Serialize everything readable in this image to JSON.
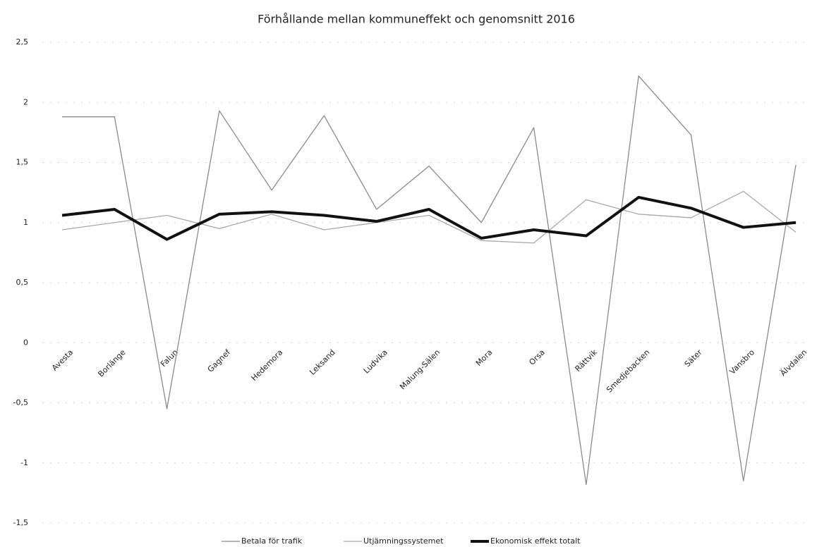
{
  "chart_data": {
    "type": "line",
    "title": "Förhållande mellan kommuneffekt och genomsnitt 2016",
    "categories": [
      "Avesta",
      "Borlänge",
      "Falun",
      "Gagnef",
      "Hedemora",
      "Leksand",
      "Ludvika",
      "Malung-Sälen",
      "Mora",
      "Orsa",
      "Rättvik",
      "Smedjebacken",
      "Säter",
      "Vansbro",
      "Älvdalen"
    ],
    "series": [
      {
        "name": "Betala för trafik",
        "color": "#8a8a8a",
        "width": 1.3,
        "values": [
          1.88,
          1.88,
          -0.55,
          1.93,
          1.27,
          1.89,
          1.11,
          1.47,
          1.0,
          1.79,
          -1.18,
          2.22,
          1.73,
          -1.15,
          1.48
        ]
      },
      {
        "name": "Utjämningssystemet",
        "color": "#a8a8a8",
        "width": 1.3,
        "values": [
          0.94,
          1.0,
          1.06,
          0.95,
          1.07,
          0.94,
          1.0,
          1.06,
          0.85,
          0.83,
          1.19,
          1.07,
          1.04,
          1.26,
          0.92
        ]
      },
      {
        "name": "Ekonomisk effekt totalt",
        "color": "#111111",
        "width": 4,
        "values": [
          1.06,
          1.11,
          0.86,
          1.07,
          1.09,
          1.06,
          1.01,
          1.11,
          0.87,
          0.94,
          0.89,
          1.21,
          1.12,
          0.96,
          1.0
        ]
      }
    ],
    "ylim": [
      -1.5,
      2.5
    ],
    "yticks": [
      {
        "value": -1.5,
        "label": "-1,5"
      },
      -1,
      {
        "value": -0.5,
        "label": "-0,5"
      },
      0,
      {
        "value": 0.5,
        "label": "0,5"
      },
      1,
      {
        "value": 1.5,
        "label": "1,5"
      },
      2,
      {
        "value": 2.5,
        "label": "2,5"
      }
    ],
    "grid": true,
    "legend": "bottom"
  }
}
